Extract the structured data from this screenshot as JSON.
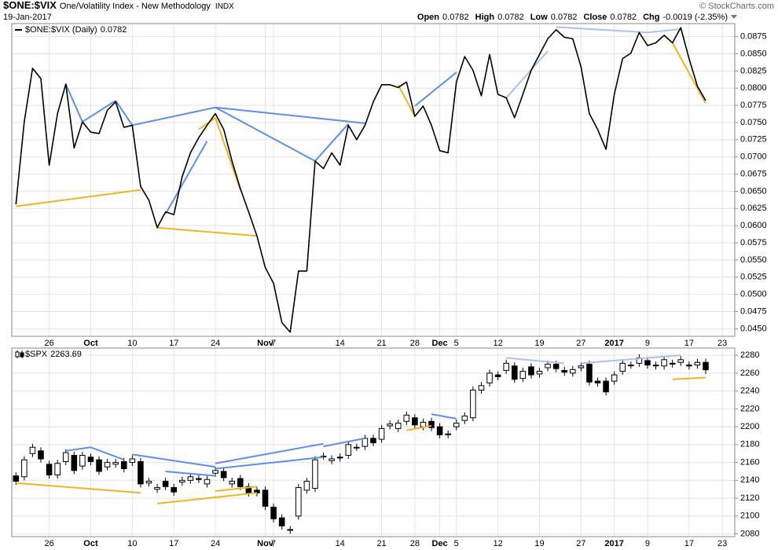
{
  "header": {
    "symbol": "$ONE:$VIX",
    "name": "One/Volatility Index - New Methodology",
    "exchange": "INDX",
    "date": "19-Jan-2017",
    "quote": [
      {
        "label": "Open",
        "value": "0.0782"
      },
      {
        "label": "High",
        "value": "0.0782"
      },
      {
        "label": "Low",
        "value": "0.0782"
      },
      {
        "label": "Close",
        "value": "0.0782"
      },
      {
        "label": "Chg",
        "value": "-0.0019 (-2.35%)"
      }
    ],
    "credit": "© StockCharts.com"
  },
  "chart_data": [
    {
      "type": "line",
      "grid": true,
      "categories": [
        null,
        null,
        null,
        null,
        "26",
        null,
        null,
        null,
        null,
        "Oct",
        null,
        null,
        null,
        null,
        "10",
        null,
        null,
        null,
        null,
        "17",
        null,
        null,
        null,
        null,
        "24",
        null,
        null,
        null,
        null,
        null,
        "Nov",
        "7",
        null,
        null,
        null,
        null,
        null,
        null,
        null,
        "14",
        null,
        null,
        null,
        null,
        "21",
        null,
        null,
        null,
        "28",
        null,
        null,
        "Dec",
        null,
        "5",
        null,
        null,
        null,
        null,
        "12",
        null,
        null,
        null,
        null,
        "19",
        null,
        null,
        null,
        null,
        "27",
        null,
        null,
        null,
        "2017",
        null,
        null,
        null,
        "9",
        null,
        null,
        null,
        null,
        "17",
        null,
        null,
        null,
        "23",
        null
      ],
      "series": [
        {
          "name": "$ONE:$VIX (Daily)",
          "color": "#000000",
          "values": [
            0.0631,
            0.0751,
            0.0829,
            0.0814,
            0.0688,
            0.0763,
            0.0806,
            0.0713,
            0.0751,
            0.0736,
            0.0734,
            0.0768,
            0.078,
            0.0743,
            0.0746,
            0.0657,
            0.0637,
            0.0597,
            0.062,
            0.0616,
            0.0671,
            0.0706,
            0.0728,
            0.0746,
            0.0763,
            0.074,
            0.0694,
            0.0654,
            0.062,
            0.0585,
            0.0539,
            0.0516,
            0.0459,
            0.0445,
            0.0534,
            0.0534,
            0.0694,
            0.0683,
            0.0706,
            0.0688,
            0.0746,
            0.0725,
            0.0746,
            0.078,
            0.0805,
            0.0805,
            0.0801,
            0.0809,
            0.0759,
            0.0774,
            0.0746,
            0.0709,
            0.0706,
            0.0809,
            0.0846,
            0.0826,
            0.0789,
            0.0849,
            0.0791,
            0.0786,
            0.0757,
            0.0791,
            0.0826,
            0.0849,
            0.0872,
            0.0885,
            0.0874,
            0.0872,
            0.0831,
            0.0763,
            0.074,
            0.0711,
            0.0791,
            0.0843,
            0.0851,
            0.0881,
            0.0862,
            0.0866,
            0.0877,
            0.0866,
            0.0888,
            0.0843,
            0.0803,
            0.0782,
            null,
            null,
            null
          ]
        }
      ],
      "ylim": [
        0.0439,
        0.0894
      ],
      "yticks": [
        {
          "value": 0.045,
          "label": "0.0450"
        },
        {
          "value": 0.0475,
          "label": "0.0475"
        },
        {
          "value": 0.05,
          "label": "0.0500"
        },
        {
          "value": 0.0525,
          "label": "0.0525"
        },
        {
          "value": 0.055,
          "label": "0.0550"
        },
        {
          "value": 0.0575,
          "label": "0.0575"
        },
        {
          "value": 0.06,
          "label": "0.0600"
        },
        {
          "value": 0.0625,
          "label": "0.0625"
        },
        {
          "value": 0.065,
          "label": "0.0650"
        },
        {
          "value": 0.0675,
          "label": "0.0675"
        },
        {
          "value": 0.07,
          "label": "0.0700"
        },
        {
          "value": 0.0725,
          "label": "0.0725"
        },
        {
          "value": 0.075,
          "label": "0.0750"
        },
        {
          "value": 0.0775,
          "label": "0.0775"
        },
        {
          "value": 0.08,
          "label": "0.0800"
        },
        {
          "value": 0.0825,
          "label": "0.0825"
        },
        {
          "value": 0.085,
          "label": "0.0850"
        },
        {
          "value": 0.0875,
          "label": "0.0875"
        }
      ],
      "trendlines": [
        {
          "color": "#5b8fe8",
          "x": [
            6,
            8
          ],
          "y": [
            0.0806,
            0.0751
          ]
        },
        {
          "color": "#5b8fe8",
          "x": [
            8,
            12
          ],
          "y": [
            0.0751,
            0.0782
          ]
        },
        {
          "color": "#5b8fe8",
          "x": [
            12,
            14
          ],
          "y": [
            0.0782,
            0.0746
          ]
        },
        {
          "color": "#5b8fe8",
          "x": [
            14,
            24
          ],
          "y": [
            0.0746,
            0.0772
          ]
        },
        {
          "color": "#5b8fe8",
          "x": [
            24,
            36
          ],
          "y": [
            0.0772,
            0.0694
          ]
        },
        {
          "color": "#5b8fe8",
          "x": [
            36,
            40
          ],
          "y": [
            0.0694,
            0.0748
          ]
        },
        {
          "color": "#5b8fe8",
          "x": [
            24,
            42
          ],
          "y": [
            0.0772,
            0.0749
          ]
        },
        {
          "color": "#5b8fe8",
          "x": [
            18,
            23
          ],
          "y": [
            0.0617,
            0.0723
          ]
        },
        {
          "color": "#5b8fe8",
          "x": [
            48,
            53
          ],
          "y": [
            0.0774,
            0.0823
          ]
        },
        {
          "color": "#a6c3f2",
          "x": [
            59,
            64
          ],
          "y": [
            0.0786,
            0.0854
          ]
        },
        {
          "color": "#a6c3f2",
          "x": [
            65,
            76
          ],
          "y": [
            0.0889,
            0.0881
          ]
        },
        {
          "color": "#a6c3f2",
          "x": [
            76,
            80
          ],
          "y": [
            0.0881,
            0.0886
          ]
        },
        {
          "color": "#f0b323",
          "x": [
            0,
            15
          ],
          "y": [
            0.0628,
            0.0652
          ]
        },
        {
          "color": "#f0b323",
          "x": [
            17,
            29
          ],
          "y": [
            0.0597,
            0.0585
          ]
        },
        {
          "color": "#f0b323",
          "x": [
            22,
            24
          ],
          "y": [
            0.074,
            0.0757
          ]
        },
        {
          "color": "#f0b323",
          "x": [
            24,
            27
          ],
          "y": [
            0.0757,
            0.0652
          ]
        },
        {
          "color": "#f0b323",
          "x": [
            46,
            48
          ],
          "y": [
            0.0805,
            0.0759
          ]
        },
        {
          "color": "#f0b323",
          "x": [
            79,
            83
          ],
          "y": [
            0.0866,
            0.0778
          ]
        }
      ]
    },
    {
      "type": "candlestick",
      "grid": true,
      "categories": [
        null,
        null,
        null,
        null,
        "26",
        null,
        null,
        null,
        null,
        "Oct",
        null,
        null,
        null,
        null,
        "10",
        null,
        null,
        null,
        null,
        "17",
        null,
        null,
        null,
        null,
        "24",
        null,
        null,
        null,
        null,
        null,
        "Nov",
        "7",
        null,
        null,
        null,
        null,
        null,
        null,
        null,
        "14",
        null,
        null,
        null,
        null,
        "21",
        null,
        null,
        null,
        "28",
        null,
        null,
        "Dec",
        null,
        "5",
        null,
        null,
        null,
        null,
        "12",
        null,
        null,
        null,
        null,
        "19",
        null,
        null,
        null,
        null,
        "27",
        null,
        null,
        null,
        "2017",
        null,
        null,
        null,
        "9",
        null,
        null,
        null,
        null,
        "17",
        null,
        null,
        null,
        "23",
        null
      ],
      "series": [
        {
          "name": "$SPX",
          "color": "#000000",
          "open": [
            2145,
            2144,
            2170,
            2173,
            2158,
            2146,
            2161,
            2168,
            2156,
            2166,
            2163,
            2155,
            2158,
            2161,
            2160,
            2161,
            2137,
            2130,
            2139,
            2132,
            2138,
            2140,
            2142,
            2136,
            2148,
            2150,
            2136,
            2142,
            2133,
            2129,
            2129,
            2110,
            2098,
            2084,
            2100,
            2129,
            2131,
            2167,
            2162,
            2166,
            2168,
            2177,
            2178,
            2187,
            2186,
            2201,
            2198,
            2206,
            2210,
            2200,
            2206,
            2200,
            2191,
            2200,
            2207,
            2210,
            2241,
            2249,
            2258,
            2263,
            2268,
            2254,
            2267,
            2259,
            2266,
            2270,
            2263,
            2260,
            2266,
            2270,
            2251,
            2251,
            2251,
            2262,
            2269,
            2271,
            2274,
            2268,
            2268,
            2271,
            2272,
            2269,
            2269,
            2272,
            null,
            null,
            null
          ],
          "high": [
            2149,
            2167,
            2181,
            2177,
            2162,
            2163,
            2175,
            2172,
            2172,
            2170,
            2167,
            2164,
            2164,
            2165,
            2168,
            2165,
            2143,
            2136,
            2143,
            2136,
            2144,
            2148,
            2146,
            2145,
            2155,
            2154,
            2143,
            2146,
            2137,
            2133,
            2133,
            2114,
            2102,
            2089,
            2136,
            2143,
            2167,
            2171,
            2168,
            2170,
            2184,
            2181,
            2191,
            2191,
            2202,
            2207,
            2208,
            2217,
            2214,
            2209,
            2210,
            2204,
            2196,
            2208,
            2216,
            2245,
            2250,
            2264,
            2262,
            2275,
            2272,
            2266,
            2271,
            2266,
            2274,
            2274,
            2267,
            2268,
            2272,
            2274,
            2255,
            2255,
            2262,
            2275,
            2273,
            2281,
            2278,
            2273,
            2279,
            2275,
            2279,
            2273,
            2276,
            2276,
            null,
            null,
            null
          ],
          "low": [
            2135,
            2140,
            2166,
            2160,
            2142,
            2142,
            2157,
            2147,
            2152,
            2157,
            2146,
            2151,
            2154,
            2149,
            2156,
            2132,
            2133,
            2126,
            2129,
            2123,
            2134,
            2136,
            2137,
            2132,
            2144,
            2139,
            2132,
            2129,
            2122,
            2122,
            2107,
            2093,
            2085,
            2080,
            2096,
            2125,
            2127,
            2163,
            2158,
            2161,
            2164,
            2173,
            2174,
            2178,
            2182,
            2197,
            2194,
            2202,
            2198,
            2196,
            2195,
            2187,
            2187,
            2196,
            2203,
            2206,
            2237,
            2245,
            2252,
            2259,
            2249,
            2250,
            2254,
            2255,
            2262,
            2261,
            2257,
            2256,
            2262,
            2246,
            2245,
            2235,
            2247,
            2258,
            2265,
            2267,
            2265,
            2264,
            2264,
            2266,
            2268,
            2264,
            2265,
            2259,
            null,
            null,
            null
          ],
          "close": [
            2139,
            2163,
            2177,
            2164,
            2146,
            2159,
            2171,
            2151,
            2168,
            2161,
            2150,
            2160,
            2160,
            2153,
            2164,
            2136,
            2139,
            2132,
            2133,
            2127,
            2140,
            2144,
            2141,
            2141,
            2151,
            2143,
            2139,
            2133,
            2126,
            2126,
            2111,
            2097,
            2089,
            2085,
            2132,
            2139,
            2163,
            2167,
            2164,
            2165,
            2180,
            2177,
            2187,
            2182,
            2198,
            2203,
            2204,
            2213,
            2202,
            2205,
            2199,
            2191,
            2192,
            2204,
            2212,
            2241,
            2246,
            2260,
            2256,
            2271,
            2253,
            2262,
            2258,
            2262,
            2270,
            2265,
            2261,
            2264,
            2268,
            2250,
            2249,
            2239,
            2258,
            2271,
            2269,
            2277,
            2269,
            2269,
            2275,
            2270,
            2275,
            2268,
            2272,
            2263.69,
            null,
            null,
            null
          ]
        }
      ],
      "ylim": [
        2077,
        2288
      ],
      "yticks": [
        2080,
        2100,
        2120,
        2140,
        2160,
        2180,
        2200,
        2220,
        2240,
        2260,
        2280
      ],
      "trendlines": [
        {
          "color": "#5b8fe8",
          "x": [
            6,
            9
          ],
          "y": [
            2173,
            2177
          ]
        },
        {
          "color": "#5b8fe8",
          "x": [
            9,
            13
          ],
          "y": [
            2177,
            2163
          ]
        },
        {
          "color": "#5b8fe8",
          "x": [
            14,
            24
          ],
          "y": [
            2169,
            2155
          ]
        },
        {
          "color": "#5b8fe8",
          "x": [
            18,
            24
          ],
          "y": [
            2150,
            2145
          ]
        },
        {
          "color": "#5b8fe8",
          "x": [
            24,
            37
          ],
          "y": [
            2159,
            2181
          ]
        },
        {
          "color": "#5b8fe8",
          "x": [
            24,
            37
          ],
          "y": [
            2153,
            2166
          ]
        },
        {
          "color": "#5b8fe8",
          "x": [
            37,
            42
          ],
          "y": [
            2178,
            2187
          ]
        },
        {
          "color": "#5b8fe8",
          "x": [
            50,
            53
          ],
          "y": [
            2214,
            2209
          ]
        },
        {
          "color": "#a6c3f2",
          "x": [
            59,
            66
          ],
          "y": [
            2277,
            2271
          ]
        },
        {
          "color": "#a6c3f2",
          "x": [
            68,
            80
          ],
          "y": [
            2271,
            2280
          ]
        },
        {
          "color": "#f0b323",
          "x": [
            0,
            15
          ],
          "y": [
            2137,
            2126
          ]
        },
        {
          "color": "#f0b323",
          "x": [
            17,
            29
          ],
          "y": [
            2114,
            2126
          ]
        },
        {
          "color": "#f0b323",
          "x": [
            24,
            29
          ],
          "y": [
            2128,
            2133
          ]
        },
        {
          "color": "#f0b323",
          "x": [
            47,
            50
          ],
          "y": [
            2196,
            2201
          ]
        },
        {
          "color": "#f0b323",
          "x": [
            79,
            83
          ],
          "y": [
            2253,
            2255
          ]
        }
      ]
    }
  ]
}
